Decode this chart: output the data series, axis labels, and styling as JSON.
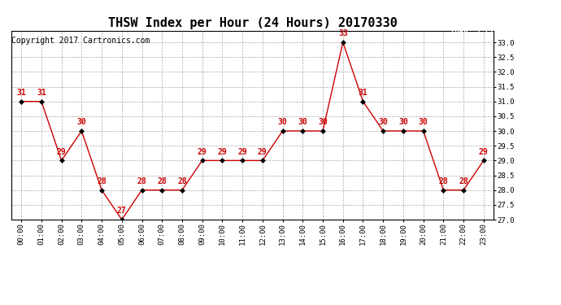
{
  "title": "THSW Index per Hour (24 Hours) 20170330",
  "copyright": "Copyright 2017 Cartronics.com",
  "legend_label": "THSW  (°F)",
  "hours": [
    "00:00",
    "01:00",
    "02:00",
    "03:00",
    "04:00",
    "05:00",
    "06:00",
    "07:00",
    "08:00",
    "09:00",
    "10:00",
    "11:00",
    "12:00",
    "13:00",
    "14:00",
    "15:00",
    "16:00",
    "17:00",
    "18:00",
    "19:00",
    "20:00",
    "21:00",
    "22:00",
    "23:00"
  ],
  "values": [
    31,
    31,
    29,
    30,
    28,
    27,
    28,
    28,
    28,
    29,
    29,
    29,
    29,
    30,
    30,
    30,
    33,
    31,
    30,
    30,
    30,
    28,
    28,
    29
  ],
  "ylim_min": 27.0,
  "ylim_max": 33.4,
  "ytick_min": 27.0,
  "ytick_max": 33.0,
  "ytick_step": 0.5,
  "line_color": "#cc0000",
  "marker_color": "#000000",
  "label_color": "#cc0000",
  "bg_color": "#ffffff",
  "grid_color": "#aaaaaa",
  "legend_bg": "#cc0000",
  "legend_text_color": "#ffffff",
  "title_fontsize": 11,
  "copyright_fontsize": 7,
  "label_fontsize": 7,
  "tick_fontsize": 6.5
}
